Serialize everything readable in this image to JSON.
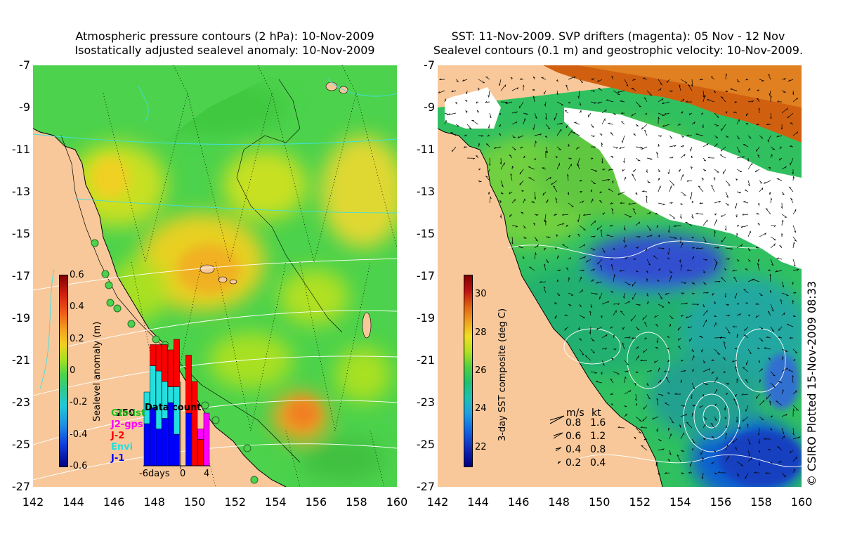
{
  "left": {
    "title1": "Atmospheric pressure contours (2 hPa): 10-Nov-2009",
    "title2": "Isostatically adjusted sealevel anomaly: 10-Nov-2009",
    "y_ticks": [
      "-7",
      "-9",
      "-11",
      "-13",
      "-15",
      "-17",
      "-19",
      "-21",
      "-23",
      "-25",
      "-27"
    ],
    "x_ticks": [
      "142",
      "144",
      "146",
      "148",
      "150",
      "152",
      "154",
      "156",
      "158",
      "160"
    ],
    "colorbar": {
      "label": "Sealevel anomaly (m)",
      "ticks": [
        "0.6",
        "0.4",
        "0.2",
        "0",
        "-0.2",
        "-0.4",
        "-0.6"
      ],
      "range": [
        -0.6,
        0.6
      ]
    },
    "data_count": {
      "title": "Data count",
      "ymax_label": "250",
      "x_labels": [
        "-6days",
        "0",
        "4"
      ],
      "legend": [
        {
          "name": "Gfo-ist",
          "color": "#22c022"
        },
        {
          "name": "J2-gps",
          "color": "#ff00ff"
        },
        {
          "name": "J-2",
          "color": "#ff0000"
        },
        {
          "name": "Envi",
          "color": "#22e0e0"
        },
        {
          "name": "J-1",
          "color": "#0000ff"
        }
      ],
      "bars": [
        {
          "J1": 80,
          "Envi": 60,
          "J2": 0,
          "J2gps": 0
        },
        {
          "J1": 110,
          "Envi": 80,
          "J2": 40,
          "J2gps": 0
        },
        {
          "J1": 70,
          "Envi": 110,
          "J2": 50,
          "J2gps": 0
        },
        {
          "J1": 90,
          "Envi": 70,
          "J2": 70,
          "J2gps": 0
        },
        {
          "J1": 120,
          "Envi": 30,
          "J2": 70,
          "J2gps": 0
        },
        {
          "J1": 60,
          "Envi": 90,
          "J2": 90,
          "J2gps": 0
        },
        {
          "J1": 0,
          "Envi": 0,
          "J2": 0,
          "J2gps": 0
        },
        {
          "J1": 100,
          "Envi": 0,
          "J2": 110,
          "J2gps": 0
        },
        {
          "J1": 0,
          "Envi": 0,
          "J2": 160,
          "J2gps": 0
        },
        {
          "J1": 0,
          "Envi": 0,
          "J2": 50,
          "J2gps": 20
        },
        {
          "J1": 0,
          "Envi": 0,
          "J2": 0,
          "J2gps": 100
        }
      ]
    }
  },
  "right": {
    "title1": "SST: 11-Nov-2009. SVP drifters (magenta): 05 Nov - 12 Nov",
    "title2": "Sealevel contours (0.1 m) and geostrophic velocity: 10-Nov-2009.",
    "y_ticks": [
      "-7",
      "-9",
      "-11",
      "-13",
      "-15",
      "-17",
      "-19",
      "-21",
      "-23",
      "-25",
      "-27"
    ],
    "x_ticks": [
      "142",
      "144",
      "146",
      "148",
      "150",
      "152",
      "154",
      "156",
      "158",
      "160"
    ],
    "colorbar": {
      "label": "3-day SST composite (deg C)",
      "ticks": [
        "30",
        "28",
        "26",
        "24",
        "22"
      ],
      "range": [
        21,
        31
      ]
    },
    "velocity_legend": {
      "header_ms": "m/s",
      "header_kt": "kt",
      "rows": [
        {
          "ms": "0.8",
          "kt": "1.6"
        },
        {
          "ms": "0.6",
          "kt": "1.2"
        },
        {
          "ms": "0.4",
          "kt": "0.8"
        },
        {
          "ms": "0.2",
          "kt": "0.4"
        }
      ]
    }
  },
  "credit": "© CSIRO Plotted 15-Nov-2009 08:33",
  "colors": {
    "land": "#f8c89a",
    "sea_green": "#4cd24c",
    "sea_lime": "#a8e020",
    "sea_yellow": "#f0d020",
    "sea_orange": "#f0a020",
    "sst_cloud": "#ffffff",
    "contour_cyan": "#40e0e0"
  }
}
